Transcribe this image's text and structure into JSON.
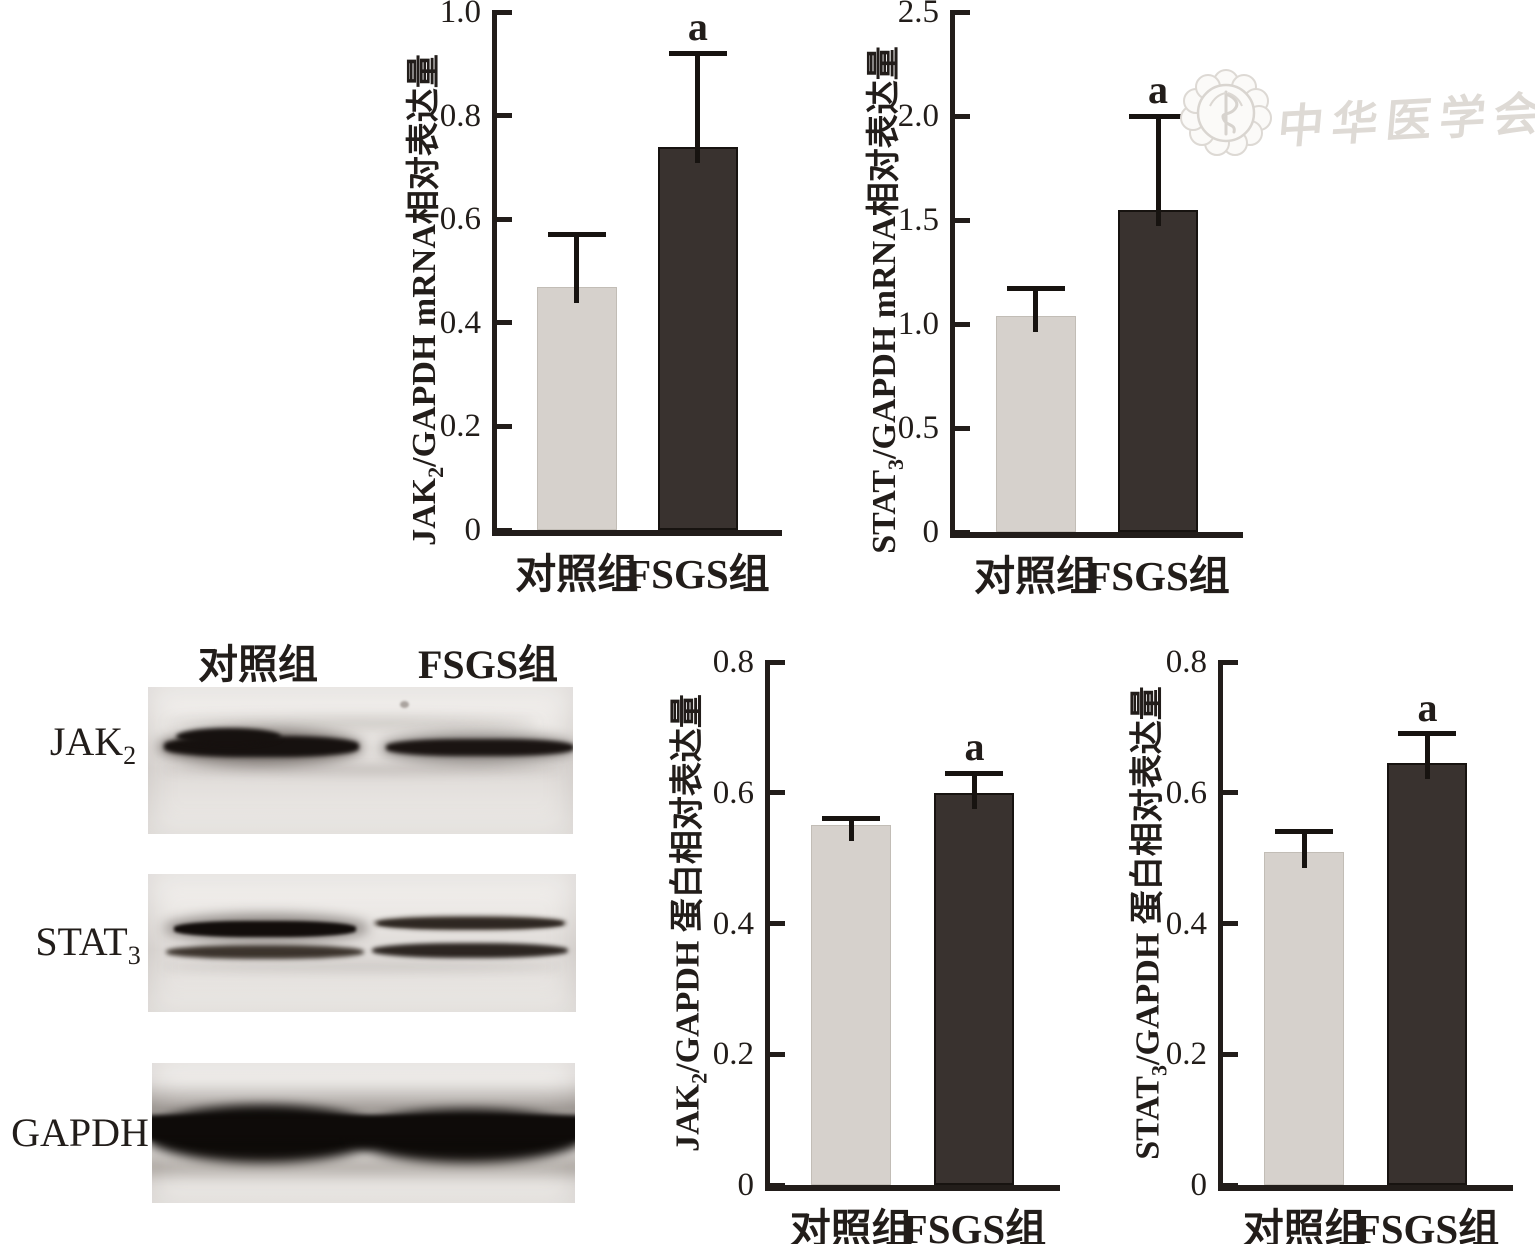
{
  "figure": {
    "watermark": {
      "text": "中华医学会",
      "emblem": "chinese-medical-association-seal"
    },
    "colors": {
      "control_bar": "#d6d1cc",
      "fsgs_bar": "#39322f",
      "axis": "#221d1a",
      "watermark": "#dedad5"
    },
    "groups": [
      "对照组",
      "FSGS组"
    ]
  },
  "chart_data": [
    {
      "id": "jak2-mrna",
      "type": "bar",
      "ylabel": {
        "pre": "JAK",
        "sub": "2",
        "post": "/GAPDH mRNA相对表达量"
      },
      "categories": [
        "对照组",
        "FSGS组"
      ],
      "values": [
        0.47,
        0.74
      ],
      "error_tops": [
        0.57,
        0.92
      ],
      "sig_labels": [
        "",
        "a"
      ],
      "ylim": [
        0,
        1.0
      ],
      "yticks": [
        {
          "v": 0,
          "label": "0"
        },
        {
          "v": 0.2,
          "label": "0.2"
        },
        {
          "v": 0.4,
          "label": "0.4"
        },
        {
          "v": 0.6,
          "label": "0.6"
        },
        {
          "v": 0.8,
          "label": "0.8"
        },
        {
          "v": 1.0,
          "label": "1.0"
        }
      ],
      "bar_color_keys": [
        "control_bar",
        "fsgs_bar"
      ],
      "grid": false,
      "legend": "none"
    },
    {
      "id": "stat3-mrna",
      "type": "bar",
      "ylabel": {
        "pre": "STAT",
        "sub": "3",
        "post": "/GAPDH mRNA相对表达量"
      },
      "categories": [
        "对照组",
        "FSGS组"
      ],
      "values": [
        1.04,
        1.55
      ],
      "error_tops": [
        1.17,
        2.0
      ],
      "sig_labels": [
        "",
        "a"
      ],
      "ylim": [
        0,
        2.5
      ],
      "yticks": [
        {
          "v": 0,
          "label": "0"
        },
        {
          "v": 0.5,
          "label": "0.5"
        },
        {
          "v": 1.0,
          "label": "1.0"
        },
        {
          "v": 1.5,
          "label": "1.5"
        },
        {
          "v": 2.0,
          "label": "2.0"
        },
        {
          "v": 2.5,
          "label": "2.5"
        }
      ],
      "bar_color_keys": [
        "control_bar",
        "fsgs_bar"
      ],
      "grid": false,
      "legend": "none"
    },
    {
      "id": "jak2-protein",
      "type": "bar",
      "ylabel": {
        "pre": "JAK",
        "sub": "2",
        "post": "/GAPDH 蛋白相对表达量"
      },
      "categories": [
        "对照组",
        "FSGS组"
      ],
      "values": [
        0.55,
        0.6
      ],
      "error_tops": [
        0.56,
        0.63
      ],
      "sig_labels": [
        "",
        "a"
      ],
      "ylim": [
        0,
        0.8
      ],
      "yticks": [
        {
          "v": 0,
          "label": "0"
        },
        {
          "v": 0.2,
          "label": "0.2"
        },
        {
          "v": 0.4,
          "label": "0.4"
        },
        {
          "v": 0.6,
          "label": "0.6"
        },
        {
          "v": 0.8,
          "label": "0.8"
        }
      ],
      "bar_color_keys": [
        "control_bar",
        "fsgs_bar"
      ],
      "grid": false,
      "legend": "none"
    },
    {
      "id": "stat3-protein",
      "type": "bar",
      "ylabel": {
        "pre": "STAT",
        "sub": "3",
        "post": "/GAPDH 蛋白相对表达量"
      },
      "categories": [
        "对照组",
        "FSGS组"
      ],
      "values": [
        0.51,
        0.645
      ],
      "error_tops": [
        0.54,
        0.69
      ],
      "sig_labels": [
        "",
        "a"
      ],
      "ylim": [
        0,
        0.8
      ],
      "yticks": [
        {
          "v": 0,
          "label": "0"
        },
        {
          "v": 0.2,
          "label": "0.2"
        },
        {
          "v": 0.4,
          "label": "0.4"
        },
        {
          "v": 0.6,
          "label": "0.6"
        },
        {
          "v": 0.8,
          "label": "0.8"
        }
      ],
      "bar_color_keys": [
        "control_bar",
        "fsgs_bar"
      ],
      "grid": false,
      "legend": "none"
    }
  ],
  "blot_panel": {
    "col_headers": [
      "对照组",
      "FSGS组"
    ],
    "rows": [
      {
        "label": {
          "pre": "JAK",
          "sub": "2"
        },
        "bands_per_lane": 1
      },
      {
        "label": {
          "pre": "STAT",
          "sub": "3"
        },
        "bands_per_lane": 2
      },
      {
        "label": {
          "pre": "GAPDH",
          "sub": ""
        },
        "bands_per_lane": 1
      }
    ]
  }
}
